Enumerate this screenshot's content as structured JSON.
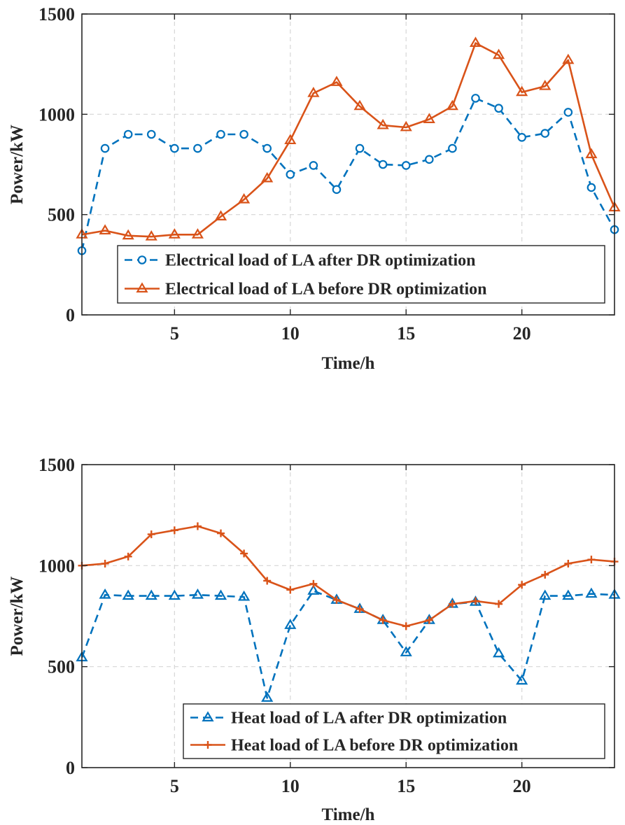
{
  "chart_data": [
    {
      "type": "line",
      "title": "",
      "xlabel": "Time/h",
      "ylabel": "Power/kW",
      "xlim": [
        1,
        24
      ],
      "ylim": [
        0,
        1500
      ],
      "xticks": [
        5,
        10,
        15,
        20
      ],
      "xtick_labels": [
        "5",
        "10",
        "15",
        "20"
      ],
      "yticks": [
        0,
        500,
        1000,
        1500
      ],
      "ytick_labels": [
        "0",
        "500",
        "1000",
        "1500"
      ],
      "grid": true,
      "legend_position": "bottom-right",
      "x": [
        1,
        2,
        3,
        4,
        5,
        6,
        7,
        8,
        9,
        10,
        11,
        12,
        13,
        14,
        15,
        16,
        17,
        18,
        19,
        20,
        21,
        22,
        23,
        24
      ],
      "series": [
        {
          "name": "Electrical load of LA after DR optimization",
          "color": "#0072BD",
          "line_style": "dashed",
          "marker": "circle",
          "values": [
            320,
            830,
            900,
            900,
            830,
            830,
            900,
            900,
            830,
            700,
            745,
            625,
            830,
            750,
            745,
            775,
            830,
            1080,
            1030,
            885,
            905,
            1010,
            635,
            425
          ]
        },
        {
          "name": "Electrical load of LA before DR optimization",
          "color": "#D95319",
          "line_style": "solid",
          "marker": "triangle",
          "values": [
            400,
            420,
            395,
            390,
            400,
            400,
            490,
            575,
            680,
            870,
            1105,
            1160,
            1040,
            945,
            935,
            975,
            1040,
            1355,
            1295,
            1110,
            1140,
            1270,
            800,
            535
          ]
        }
      ]
    },
    {
      "type": "line",
      "title": "",
      "xlabel": "Time/h",
      "ylabel": "Power/kW",
      "xlim": [
        1,
        24
      ],
      "ylim": [
        0,
        1500
      ],
      "xticks": [
        5,
        10,
        15,
        20
      ],
      "xtick_labels": [
        "5",
        "10",
        "15",
        "20"
      ],
      "yticks": [
        0,
        500,
        1000,
        1500
      ],
      "ytick_labels": [
        "0",
        "500",
        "1000",
        "1500"
      ],
      "grid": true,
      "legend_position": "bottom-right",
      "x": [
        1,
        2,
        3,
        4,
        5,
        6,
        7,
        8,
        9,
        10,
        11,
        12,
        13,
        14,
        15,
        16,
        17,
        18,
        19,
        20,
        21,
        22,
        23,
        24
      ],
      "series": [
        {
          "name": "Heat load of LA after DR optimization",
          "color": "#0072BD",
          "line_style": "dashed",
          "marker": "triangle",
          "values": [
            545,
            855,
            850,
            850,
            850,
            855,
            850,
            845,
            345,
            705,
            875,
            830,
            785,
            730,
            570,
            730,
            810,
            820,
            565,
            430,
            850,
            850,
            860,
            855
          ]
        },
        {
          "name": "Heat load of LA before DR optimization",
          "color": "#D95319",
          "line_style": "solid",
          "marker": "plus",
          "values": [
            1000,
            1010,
            1045,
            1155,
            1175,
            1195,
            1160,
            1060,
            925,
            880,
            910,
            830,
            785,
            730,
            700,
            730,
            810,
            825,
            810,
            905,
            955,
            1010,
            1030,
            1020
          ]
        }
      ]
    }
  ]
}
